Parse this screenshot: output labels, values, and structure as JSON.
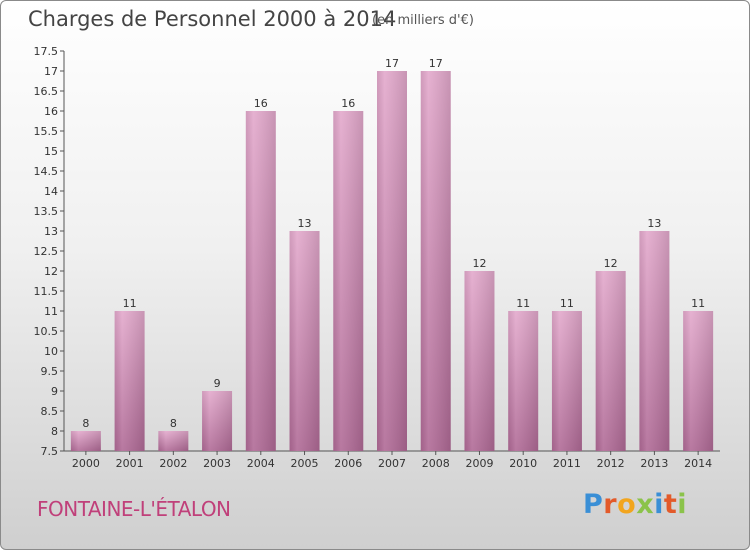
{
  "header": {
    "title": "Charges de Personnel 2000 à 2014",
    "subtitle": "(en milliers d'€)"
  },
  "footer": {
    "place": "FONTAINE-L'ÉTALON",
    "brand": "Proxiti"
  },
  "colors": {
    "bar_top": "#e3a9cc",
    "bar_bottom": "#b06a96",
    "place_text": "#c0407a"
  },
  "chart_data": {
    "type": "bar",
    "title": "Charges de Personnel 2000 à 2014",
    "subtitle": "(en milliers d'€)",
    "categories": [
      "2000",
      "2001",
      "2002",
      "2003",
      "2004",
      "2005",
      "2006",
      "2007",
      "2008",
      "2009",
      "2010",
      "2011",
      "2012",
      "2013",
      "2014"
    ],
    "values": [
      8,
      11,
      8,
      9,
      16,
      13,
      16,
      17,
      17,
      12,
      11,
      11,
      12,
      13,
      11
    ],
    "ylim": [
      7.5,
      17.5
    ],
    "yticks": [
      7.5,
      8,
      8.5,
      9,
      9.5,
      10,
      10.5,
      11,
      11.5,
      12,
      12.5,
      13,
      13.5,
      14,
      14.5,
      15,
      15.5,
      16,
      16.5,
      17,
      17.5
    ],
    "grid": false,
    "legend": "none"
  }
}
